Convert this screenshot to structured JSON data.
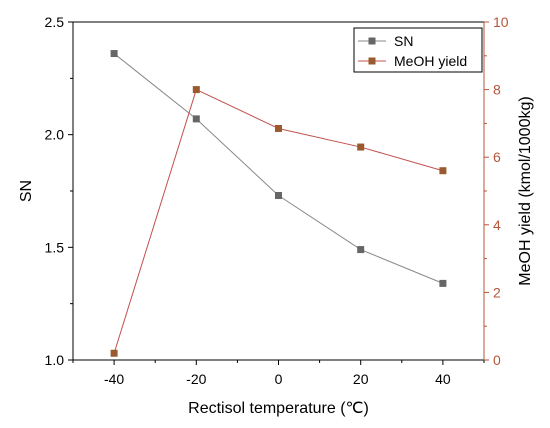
{
  "chart_data": {
    "type": "line",
    "xlabel": "Rectisol temperature (℃)",
    "ylabel": "SN",
    "y2label": "MeOH yield (kmol/1000kg)",
    "x": [
      -40,
      -20,
      0,
      20,
      40
    ],
    "xlim": [
      -50,
      50
    ],
    "xticks": [
      -40,
      -20,
      0,
      20,
      40
    ],
    "ylim": [
      1.0,
      2.5
    ],
    "yticks": [
      1.0,
      1.5,
      2.0,
      2.5
    ],
    "y2lim": [
      0,
      10
    ],
    "y2ticks": [
      0,
      2,
      4,
      6,
      8,
      10
    ],
    "legend_position": "top-right",
    "grid": false,
    "series": [
      {
        "name": "SN",
        "axis": "left",
        "values": [
          2.36,
          2.07,
          1.73,
          1.49,
          1.34
        ],
        "line_color": "#888888",
        "marker_color": "#666666"
      },
      {
        "name": "MeOH yield",
        "axis": "right",
        "values": [
          0.2,
          8.0,
          6.85,
          6.3,
          5.6
        ],
        "line_color": "#c0504d",
        "marker_color": "#9b5a2e"
      }
    ],
    "right_axis_color": "#b5553a"
  }
}
